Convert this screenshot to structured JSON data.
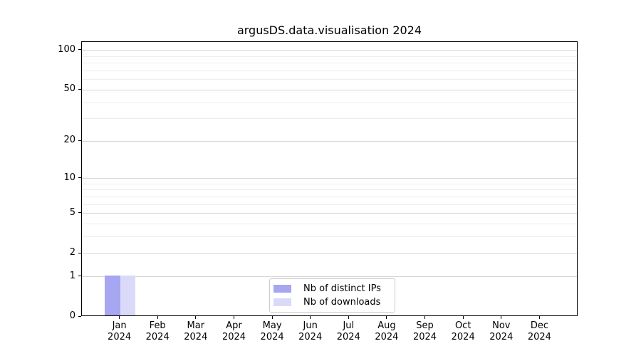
{
  "chart_data": {
    "type": "bar",
    "title": "argusDS.data.visualisation 2024",
    "categories": [
      {
        "month": "Jan",
        "year": "2024"
      },
      {
        "month": "Feb",
        "year": "2024"
      },
      {
        "month": "Mar",
        "year": "2024"
      },
      {
        "month": "Apr",
        "year": "2024"
      },
      {
        "month": "May",
        "year": "2024"
      },
      {
        "month": "Jun",
        "year": "2024"
      },
      {
        "month": "Jul",
        "year": "2024"
      },
      {
        "month": "Aug",
        "year": "2024"
      },
      {
        "month": "Sep",
        "year": "2024"
      },
      {
        "month": "Oct",
        "year": "2024"
      },
      {
        "month": "Nov",
        "year": "2024"
      },
      {
        "month": "Dec",
        "year": "2024"
      }
    ],
    "series": [
      {
        "name": "Nb of distinct IPs",
        "color": "#a6a6f1",
        "values": [
          1,
          0,
          0,
          0,
          0,
          0,
          0,
          0,
          0,
          0,
          0,
          0
        ]
      },
      {
        "name": "Nb of downloads",
        "color": "#dadaf8",
        "values": [
          1,
          0,
          0,
          0,
          0,
          0,
          0,
          0,
          0,
          0,
          0,
          0
        ]
      }
    ],
    "y_axis": {
      "scale": "symlog",
      "major_ticks": [
        0,
        1,
        2,
        5,
        10,
        20,
        50,
        100
      ],
      "minor_gridlines": [
        3,
        4,
        6,
        7,
        8,
        9,
        30,
        40,
        60,
        70,
        80,
        90
      ],
      "max": 116
    },
    "xlabel": "",
    "ylabel": "",
    "grid": true,
    "legend_position": "lower center"
  },
  "colors": {
    "major_grid": "#d6d6d6",
    "minor_grid": "#ededed",
    "axis": "#000000",
    "legend_border": "#cccccc",
    "background": "#ffffff"
  }
}
